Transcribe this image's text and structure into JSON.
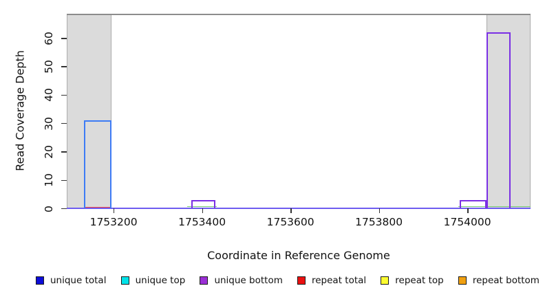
{
  "chart_data": {
    "type": "line",
    "subtype": "step-coverage",
    "title": "",
    "xlabel": "Coordinate in Reference Genome",
    "ylabel": "Read Coverage Depth",
    "xlim": [
      1753094,
      1754143
    ],
    "ylim": [
      0,
      68.5
    ],
    "grid": false,
    "legend_position": "bottom",
    "x_ticks": [
      {
        "value": 1753200,
        "label": "1753200"
      },
      {
        "value": 1753400,
        "label": "1753400"
      },
      {
        "value": 1753600,
        "label": "1753600"
      },
      {
        "value": 1753800,
        "label": "1753800"
      },
      {
        "value": 1754000,
        "label": "1754000"
      }
    ],
    "y_ticks": [
      {
        "value": 0,
        "label": "0"
      },
      {
        "value": 10,
        "label": "10"
      },
      {
        "value": 20,
        "label": "20"
      },
      {
        "value": 30,
        "label": "30"
      },
      {
        "value": 40,
        "label": "40"
      },
      {
        "value": 50,
        "label": "50"
      },
      {
        "value": 60,
        "label": "60"
      }
    ],
    "shaded_regions": [
      {
        "x1": 1753094,
        "x2": 1753195,
        "color": "#dbdbdb"
      },
      {
        "x1": 1754044,
        "x2": 1754143,
        "color": "#dbdbdb"
      }
    ],
    "top_boundary_line": {
      "y": 68.5,
      "color": "#8c8c8c"
    },
    "baseline": {
      "color": "#6e5cf0"
    },
    "series": [
      {
        "key": "unique-total",
        "name": "unique total",
        "legend_color": "#0d0dd8",
        "plot_color": "#3d7bf5",
        "coverage_segments": [
          {
            "x1": 1753133,
            "x2": 1753195,
            "depth": 31
          }
        ],
        "zero_segments": []
      },
      {
        "key": "unique-top",
        "name": "unique top",
        "legend_color": "#00e2e8",
        "plot_color": "#78c878",
        "coverage_segments": [],
        "zero_segments": [
          {
            "x1": 1753366,
            "x2": 1753433
          },
          {
            "x1": 1753980,
            "x2": 1754143
          }
        ]
      },
      {
        "key": "unique-bottom",
        "name": "unique bottom",
        "legend_color": "#9b2fd6",
        "plot_color": "#7a2fe4",
        "coverage_segments": [
          {
            "x1": 1753375,
            "x2": 1753430,
            "depth": 3
          },
          {
            "x1": 1753983,
            "x2": 1754044,
            "depth": 3
          },
          {
            "x1": 1754044,
            "x2": 1754098,
            "depth": 62
          }
        ],
        "zero_segments": []
      },
      {
        "key": "repeat-total",
        "name": "repeat total",
        "legend_color": "#ea1111",
        "plot_color": "#ee4444",
        "coverage_segments": [],
        "zero_segments": [
          {
            "x1": 1753133,
            "x2": 1753195
          }
        ]
      },
      {
        "key": "repeat-top",
        "name": "repeat top",
        "legend_color": "#fcfc30",
        "plot_color": "#fcfc30",
        "coverage_segments": [],
        "zero_segments": []
      },
      {
        "key": "repeat-bottom",
        "name": "repeat bottom",
        "legend_color": "#f0a011",
        "plot_color": "#f0a011",
        "coverage_segments": [],
        "zero_segments": []
      }
    ]
  }
}
